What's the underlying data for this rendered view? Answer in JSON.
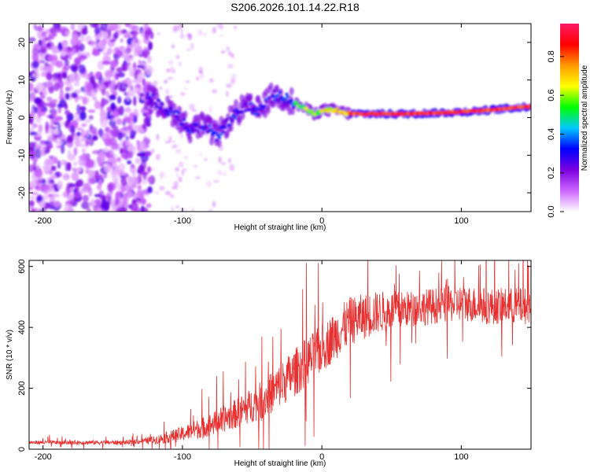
{
  "title": "S206.2026.101.14.22.R18",
  "chart_data": [
    {
      "type": "heatmap",
      "xlabel": "Height of straight line (km)",
      "ylabel": "Frequency (Hz)",
      "xlim": [
        -210,
        150
      ],
      "ylim": [
        -25,
        25
      ],
      "xticks": [
        -200,
        -100,
        0,
        100
      ],
      "yticks": [
        -20,
        -10,
        0,
        10,
        20
      ],
      "ridge": [
        {
          "x": -125,
          "y": 6
        },
        {
          "x": -115,
          "y": 3
        },
        {
          "x": -105,
          "y": 1
        },
        {
          "x": -95,
          "y": -3
        },
        {
          "x": -85,
          "y": -2
        },
        {
          "x": -75,
          "y": -5
        },
        {
          "x": -65,
          "y": 0
        },
        {
          "x": -55,
          "y": 3
        },
        {
          "x": -45,
          "y": 2
        },
        {
          "x": -35,
          "y": 6
        },
        {
          "x": -25,
          "y": 5
        },
        {
          "x": -15,
          "y": 3
        },
        {
          "x": -5,
          "y": 1
        },
        {
          "x": 0,
          "y": 2
        },
        {
          "x": 10,
          "y": 2
        },
        {
          "x": 20,
          "y": 1
        },
        {
          "x": 40,
          "y": 1
        },
        {
          "x": 60,
          "y": 1
        },
        {
          "x": 80,
          "y": 1.2
        },
        {
          "x": 100,
          "y": 1.5
        },
        {
          "x": 120,
          "y": 2
        },
        {
          "x": 150,
          "y": 3
        }
      ],
      "colorbar": {
        "label": "Normalized spectral amplitude",
        "range": [
          0,
          0.97
        ],
        "ticks": [
          0.0,
          0.2,
          0.4,
          0.6,
          0.8
        ],
        "tick_labels": [
          "0.0",
          "0.2",
          "0.4",
          "0.6",
          "0.8"
        ],
        "colors": [
          "#ffffff",
          "#cc66ff",
          "#7b00e0",
          "#0000ff",
          "#00c8ff",
          "#00ff00",
          "#ffff00",
          "#ff9900",
          "#ff0000",
          "#ff1a66"
        ]
      }
    },
    {
      "type": "line",
      "xlabel": "Height of straight line (km)",
      "ylabel": "SNR (10 * v/v)",
      "xlim": [
        -210,
        150
      ],
      "ylim": [
        0,
        620
      ],
      "xticks": [
        -200,
        -100,
        0,
        100
      ],
      "yticks": [
        0,
        200,
        400,
        600
      ],
      "color": "#e83030",
      "trend": [
        {
          "x": -210,
          "y": 22
        },
        {
          "x": -140,
          "y": 22
        },
        {
          "x": -120,
          "y": 30
        },
        {
          "x": -100,
          "y": 50
        },
        {
          "x": -80,
          "y": 80
        },
        {
          "x": -60,
          "y": 120
        },
        {
          "x": -40,
          "y": 170
        },
        {
          "x": -20,
          "y": 250
        },
        {
          "x": 0,
          "y": 330
        },
        {
          "x": 20,
          "y": 420
        },
        {
          "x": 40,
          "y": 450
        },
        {
          "x": 60,
          "y": 460
        },
        {
          "x": 80,
          "y": 470
        },
        {
          "x": 100,
          "y": 480
        },
        {
          "x": 120,
          "y": 470
        },
        {
          "x": 150,
          "y": 470
        }
      ],
      "noise_amplitude": [
        {
          "x": -210,
          "y": 6
        },
        {
          "x": -130,
          "y": 8
        },
        {
          "x": -100,
          "y": 25
        },
        {
          "x": -60,
          "y": 50
        },
        {
          "x": -20,
          "y": 80
        },
        {
          "x": 20,
          "y": 80
        },
        {
          "x": 60,
          "y": 60
        },
        {
          "x": 150,
          "y": 60
        }
      ]
    }
  ]
}
